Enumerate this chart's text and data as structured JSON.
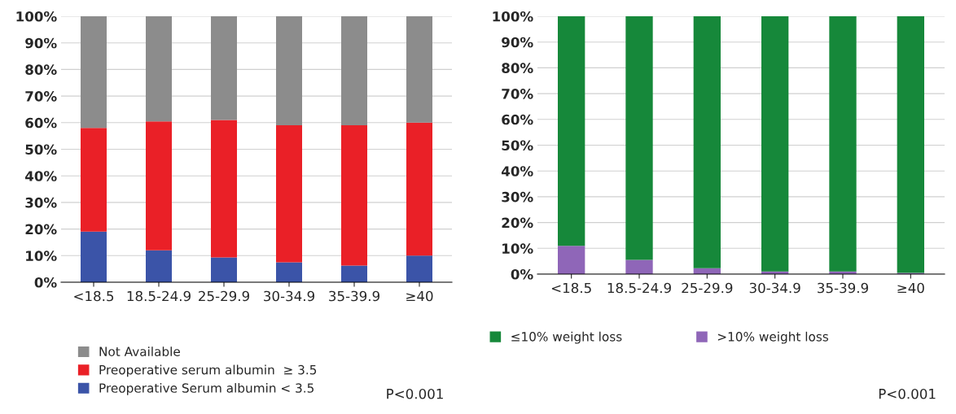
{
  "chart_data": [
    {
      "type": "bar",
      "stacked": true,
      "categories": [
        "<18.5",
        "18.5-24.9",
        "25-29.9",
        "30-34.9",
        "35-39.9",
        "≥40"
      ],
      "series": [
        {
          "name": "Preoperative Serum albumin < 3.5",
          "color": "#3b54a8",
          "values": [
            19,
            12,
            9.3,
            7.5,
            6.3,
            10
          ]
        },
        {
          "name": "Preoperative serum albumin  ≥ 3.5",
          "color": "#ea2027",
          "values": [
            39,
            48.5,
            51.7,
            51.5,
            52.7,
            50
          ]
        },
        {
          "name": "Not Available",
          "color": "#8c8c8c",
          "values": [
            42,
            39.5,
            39,
            41,
            41,
            40
          ]
        }
      ],
      "ylim": [
        0,
        100
      ],
      "yticks": [
        {
          "value": 0,
          "label": "0%"
        },
        {
          "value": 10,
          "label": "10%"
        },
        {
          "value": 20,
          "label": "20%"
        },
        {
          "value": 30,
          "label": "30%"
        },
        {
          "value": 40,
          "label": "40%"
        },
        {
          "value": 50,
          "label": "50%"
        },
        {
          "value": 60,
          "label": "60%"
        },
        {
          "value": 70,
          "label": "70%"
        },
        {
          "value": 80,
          "label": "80%"
        },
        {
          "value": 90,
          "label": "90%"
        },
        {
          "value": 100,
          "label": "100%"
        }
      ],
      "grid": "y",
      "legend": "bottom",
      "annotations": [
        "P<0.001"
      ]
    },
    {
      "type": "bar",
      "stacked": true,
      "categories": [
        "<18.5",
        "18.5-24.9",
        "25-29.9",
        "30-34.9",
        "35-39.9",
        "≥40"
      ],
      "series": [
        {
          "name": ">10% weight loss",
          "color": "#8f66b8",
          "values": [
            11,
            5.5,
            2.3,
            1,
            1,
            0.5
          ]
        },
        {
          "name": "≤10% weight loss",
          "color": "#16883a",
          "values": [
            89,
            94.5,
            97.7,
            99,
            99,
            99.5
          ]
        }
      ],
      "ylim": [
        0,
        100
      ],
      "yticks": [
        {
          "value": 0,
          "label": "0%"
        },
        {
          "value": 10,
          "label": "10%"
        },
        {
          "value": 20,
          "label": "20%"
        },
        {
          "value": 30,
          "label": "30%"
        },
        {
          "value": 40,
          "label": "40%"
        },
        {
          "value": 50,
          "label": "50%"
        },
        {
          "value": 60,
          "label": "60%"
        },
        {
          "value": 70,
          "label": "70%"
        },
        {
          "value": 80,
          "label": "80%"
        },
        {
          "value": 90,
          "label": "90%"
        },
        {
          "value": 100,
          "label": "100%"
        }
      ],
      "grid": "y",
      "legend": "bottom",
      "annotations": [
        "P<0.001"
      ]
    }
  ]
}
